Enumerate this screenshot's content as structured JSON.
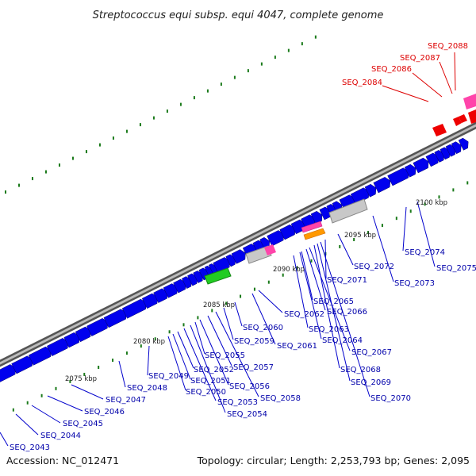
{
  "title": "Streptococcus equi subsp. equi 4047, complete genome",
  "footer": {
    "accession": "Accession: NC_012471",
    "summary": "Topology: circular; Length: 2,253,793 bp; Genes: 2,095"
  },
  "colors": {
    "forward_gene": "#0000ee",
    "reverse_gene": "#0000ee",
    "backbone": "#7a7a7a",
    "label_blue": "#0000aa",
    "label_red": "#dd0000",
    "tick": "#1a7a1a",
    "rRNA": "#ee0000",
    "tRNA": "#ff44aa",
    "other": "#c0c0c0",
    "green_feature": "#22cc22",
    "orange_feature": "#ff9900"
  },
  "scale_labels": [
    "2075 kbp",
    "2080 kbp",
    "2085 kbp",
    "2090 kbp",
    "2095 kbp",
    "2100 kbp"
  ],
  "gene_labels_blue": [
    "SEQ_2043",
    "SEQ_2044",
    "SEQ_2045",
    "SEQ_2046",
    "SEQ_2047",
    "SEQ_2048",
    "SEQ_2049",
    "SEQ_2050",
    "SEQ_2051",
    "SEQ_2052",
    "SEQ_2053",
    "SEQ_2054",
    "SEQ_2055",
    "SEQ_2056",
    "SEQ_2057",
    "SEQ_2058",
    "SEQ_2059",
    "SEQ_2060",
    "SEQ_2061",
    "SEQ_2062",
    "SEQ_2063",
    "SEQ_2064",
    "SEQ_2065",
    "SEQ_2066",
    "SEQ_2067",
    "SEQ_2068",
    "SEQ_2069",
    "SEQ_2070",
    "SEQ_2071",
    "SEQ_2072",
    "SEQ_2073",
    "SEQ_2074",
    "SEQ_2075"
  ],
  "gene_labels_red": [
    "SEQ_2084",
    "SEQ_2086",
    "SEQ_2087",
    "SEQ_2088"
  ]
}
